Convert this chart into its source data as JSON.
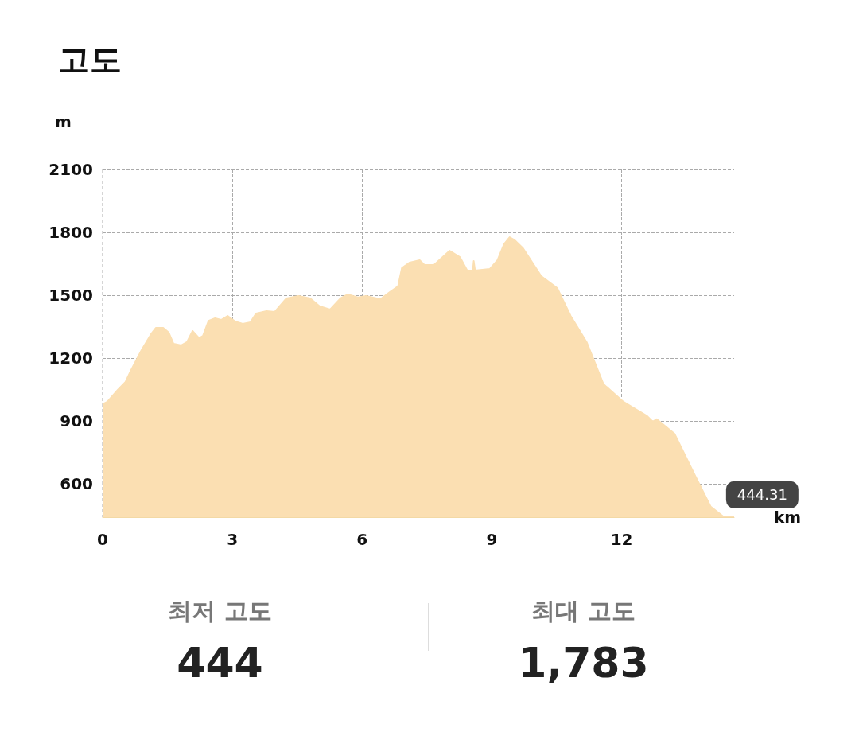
{
  "chart_data": {
    "type": "area",
    "title": "고도",
    "ylabel": "m",
    "xlabel": "km",
    "xlim": [
      0,
      14.6
    ],
    "xticks": [
      0,
      3,
      6,
      9,
      12
    ],
    "ylim": [
      440,
      2100
    ],
    "yticks": [
      600,
      900,
      1200,
      1500,
      1800,
      2100
    ],
    "grid": true,
    "marker": "none",
    "series": [
      {
        "color": "#fbdfb2",
        "x": [
          0,
          0.11,
          0.35,
          0.53,
          0.66,
          0.9,
          1.12,
          1.23,
          1.4,
          1.53,
          1.64,
          1.82,
          1.95,
          2.08,
          2.23,
          2.32,
          2.45,
          2.6,
          2.74,
          2.89,
          3.06,
          3.24,
          3.42,
          3.55,
          3.79,
          3.98,
          4.25,
          4.53,
          4.8,
          5.02,
          5.26,
          5.5,
          5.67,
          5.91,
          6.09,
          6.42,
          6.64,
          6.83,
          6.92,
          7.1,
          7.33,
          7.44,
          7.66,
          8.02,
          8.26,
          8.43,
          8.56,
          8.58,
          8.61,
          8.95,
          9.13,
          9.28,
          9.41,
          9.53,
          9.72,
          10.14,
          10.51,
          10.82,
          11.19,
          11.58,
          12.04,
          12.59,
          12.72,
          12.81,
          13.22,
          13.69,
          14.06,
          14.34,
          14.6
        ],
        "values": [
          980,
          991,
          1048,
          1086,
          1143,
          1238,
          1314,
          1344,
          1344,
          1321,
          1268,
          1261,
          1276,
          1329,
          1295,
          1306,
          1378,
          1390,
          1382,
          1401,
          1375,
          1363,
          1371,
          1413,
          1424,
          1420,
          1485,
          1496,
          1485,
          1447,
          1432,
          1485,
          1504,
          1489,
          1496,
          1481,
          1515,
          1542,
          1630,
          1656,
          1667,
          1644,
          1644,
          1712,
          1682,
          1618,
          1618,
          1663,
          1618,
          1625,
          1667,
          1743,
          1777,
          1762,
          1724,
          1591,
          1534,
          1401,
          1276,
          1075,
          991,
          923,
          896,
          908,
          839,
          642,
          490,
          444.31,
          444
        ]
      }
    ],
    "annotations": [
      {
        "text": "444.31",
        "x": 14.34,
        "y": 444.31
      },
      "최저 고도",
      "444",
      "최대 고도",
      "1,783"
    ]
  }
}
